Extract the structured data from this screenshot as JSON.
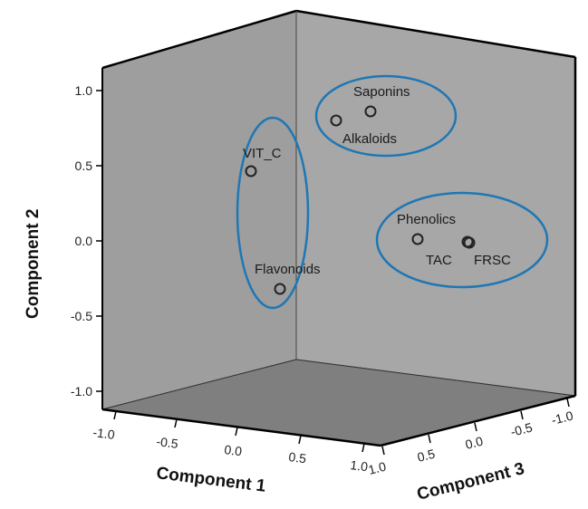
{
  "chart_data": {
    "type": "scatter",
    "title": "",
    "subtitle": "",
    "style": "3D component plot",
    "axes": {
      "x": {
        "label": "Component 1",
        "range": [
          -1.0,
          1.0
        ],
        "ticks": [
          "-1.0",
          "-0.5",
          "0.0",
          "0.5",
          "1.0"
        ]
      },
      "y": {
        "label": "Component 2",
        "range": [
          -1.0,
          1.0
        ],
        "ticks": [
          "1.0",
          "0.5",
          "0.0",
          "-0.5",
          "-1.0"
        ]
      },
      "z": {
        "label": "Component 3",
        "range": [
          -1.0,
          1.0
        ],
        "ticks": [
          "1.0",
          "0.5",
          "0.0",
          "-0.5",
          "-1.0"
        ]
      }
    },
    "points": [
      {
        "label": "Saponins",
        "y": 0.85
      },
      {
        "label": "Alkaloids",
        "y": 0.78
      },
      {
        "label": "VIT_C",
        "y": 0.45
      },
      {
        "label": "Phenolics",
        "y": 0.0
      },
      {
        "label": "TAC",
        "y": 0.0
      },
      {
        "label": "FRSC",
        "y": -0.02
      },
      {
        "label": "Flavonoids",
        "y": -0.33
      }
    ],
    "groups": [
      {
        "members": [
          "Saponins",
          "Alkaloids"
        ]
      },
      {
        "members": [
          "VIT_C",
          "Flavonoids"
        ]
      },
      {
        "members": [
          "Phenolics",
          "TAC",
          "FRSC"
        ]
      }
    ],
    "colors": {
      "left_wall": "#9e9e9e",
      "back_wall": "#a7a7a7",
      "floor": "#7f7f7f",
      "group_outline": "#1f77b4"
    },
    "grid": false,
    "legend": "none"
  }
}
